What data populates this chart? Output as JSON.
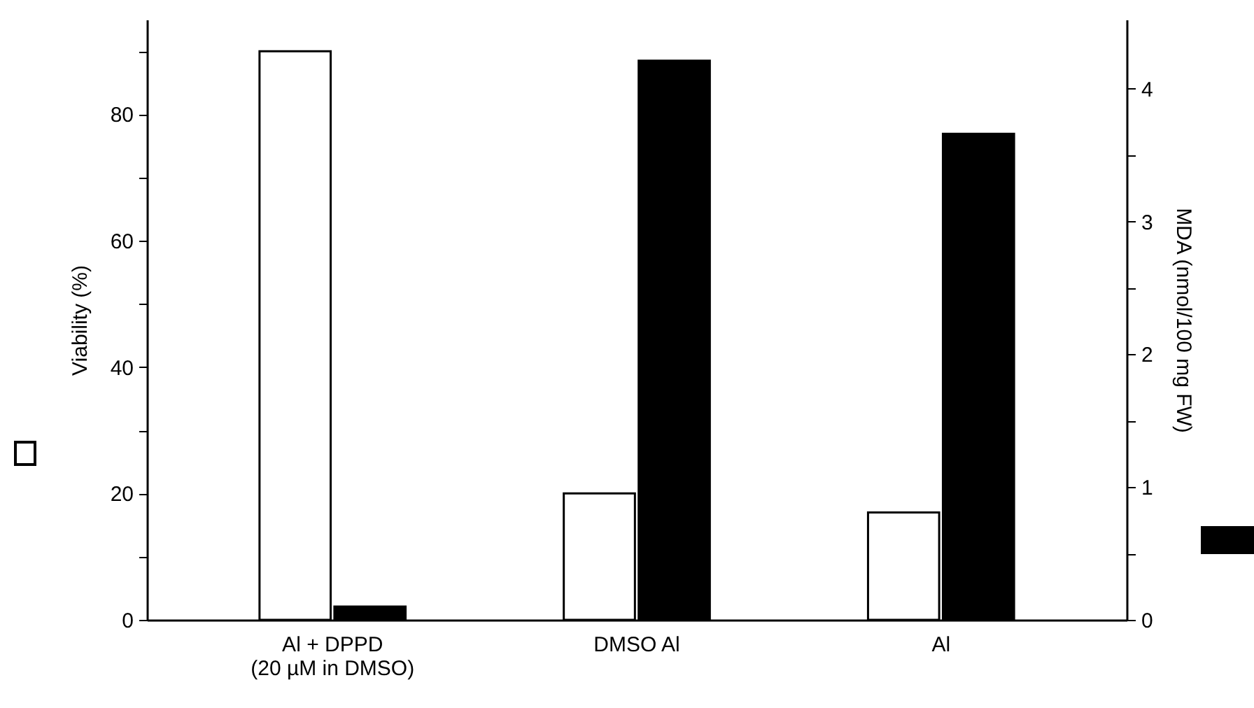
{
  "chart_data": {
    "type": "bar",
    "categories": [
      "Al + DPPD\n(20 µM in DMSO)",
      "DMSO Al",
      "Al"
    ],
    "ylabel": "Viability (%)",
    "y2label": "MDA (nmol/100 mg FW)",
    "series": [
      {
        "color": "#ffffff",
        "values": [
          90,
          20,
          17
        ]
      },
      {
        "color": "#000000",
        "values": [
          0.1,
          4.21,
          3.66
        ],
        "axis": "y2"
      }
    ],
    "ylim": [
      0,
      95
    ],
    "yticks": [
      0,
      {
        "value": 10,
        "label": null
      },
      20,
      {
        "value": 30,
        "label": null
      },
      40,
      {
        "value": 50,
        "label": null
      },
      60,
      {
        "value": 70,
        "label": null
      },
      80,
      {
        "value": 90,
        "label": null
      }
    ],
    "y2lim": [
      0,
      4.52
    ],
    "y2ticks": [
      0,
      {
        "value": 0.5,
        "label": null
      },
      1,
      {
        "value": 1.5,
        "label": null
      },
      2,
      {
        "value": 2.5,
        "label": null
      },
      3,
      {
        "value": 3.5,
        "label": null
      },
      4
    ],
    "grid": false
  }
}
